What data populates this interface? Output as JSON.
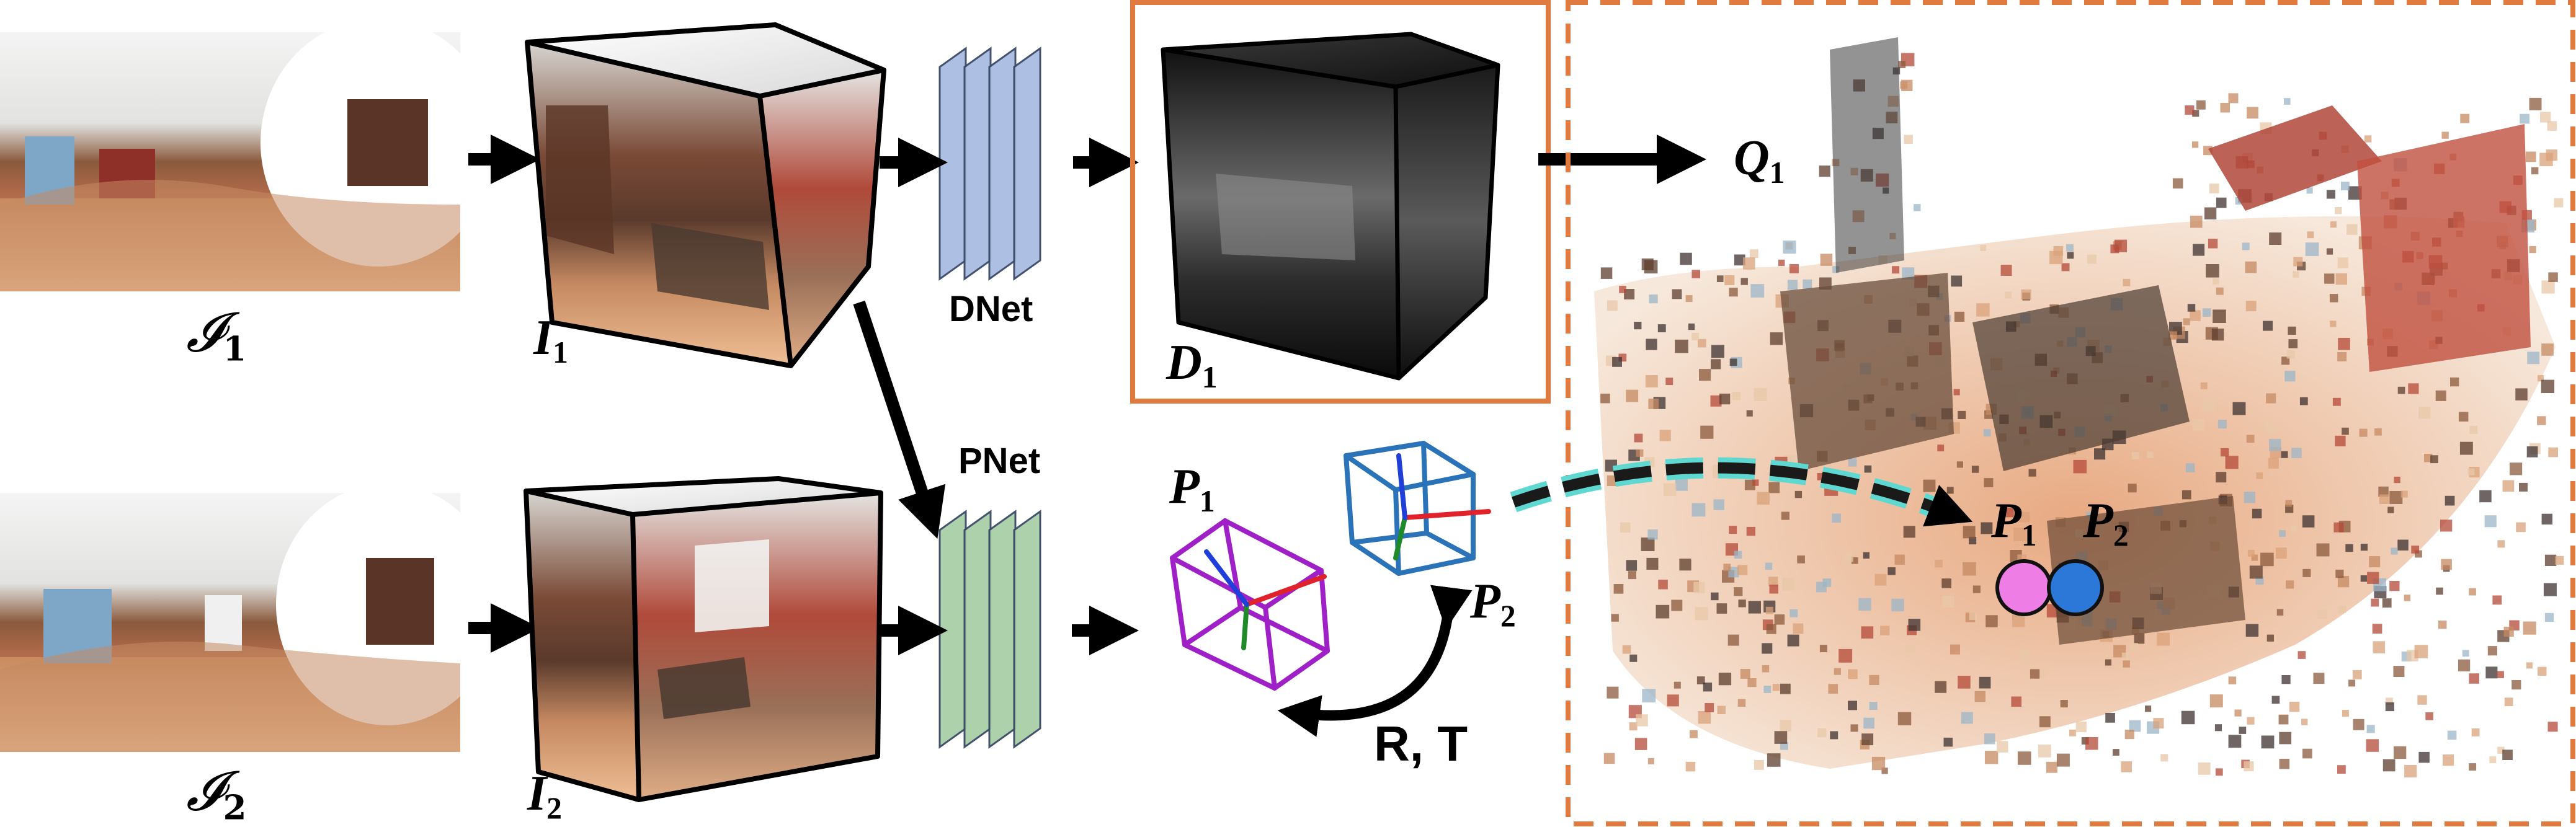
{
  "labels": {
    "pano1": {
      "name": "𝓘",
      "sub": "1"
    },
    "pano2": {
      "name": "𝓘",
      "sub": "2"
    },
    "cube1": {
      "name": "I",
      "sub": "1"
    },
    "cube2": {
      "name": "I",
      "sub": "2"
    },
    "depth1": {
      "name": "D",
      "sub": "1"
    },
    "query1": {
      "name": "Q",
      "sub": "1"
    },
    "pose1": {
      "name": "P",
      "sub": "1"
    },
    "pose2": {
      "name": "P",
      "sub": "2"
    },
    "cloud_pose1": {
      "name": "P",
      "sub": "1"
    },
    "cloud_pose2": {
      "name": "P",
      "sub": "2"
    }
  },
  "networks": {
    "dnet": "DNet",
    "pnet": "PNet"
  },
  "transform": "R, T",
  "colors": {
    "depth_frame": "#e07a3f",
    "cloud_frame": "#e07a3f",
    "dnet_layers": "#a9bde2",
    "pnet_layers": "#a8cfa7",
    "pose1_cube": "#a020c8",
    "pose2_cube": "#2a73b8",
    "pose1_dot": "#ee7ee6",
    "pose2_dot": "#2b78d8",
    "trajectory": "#60d8d2"
  }
}
